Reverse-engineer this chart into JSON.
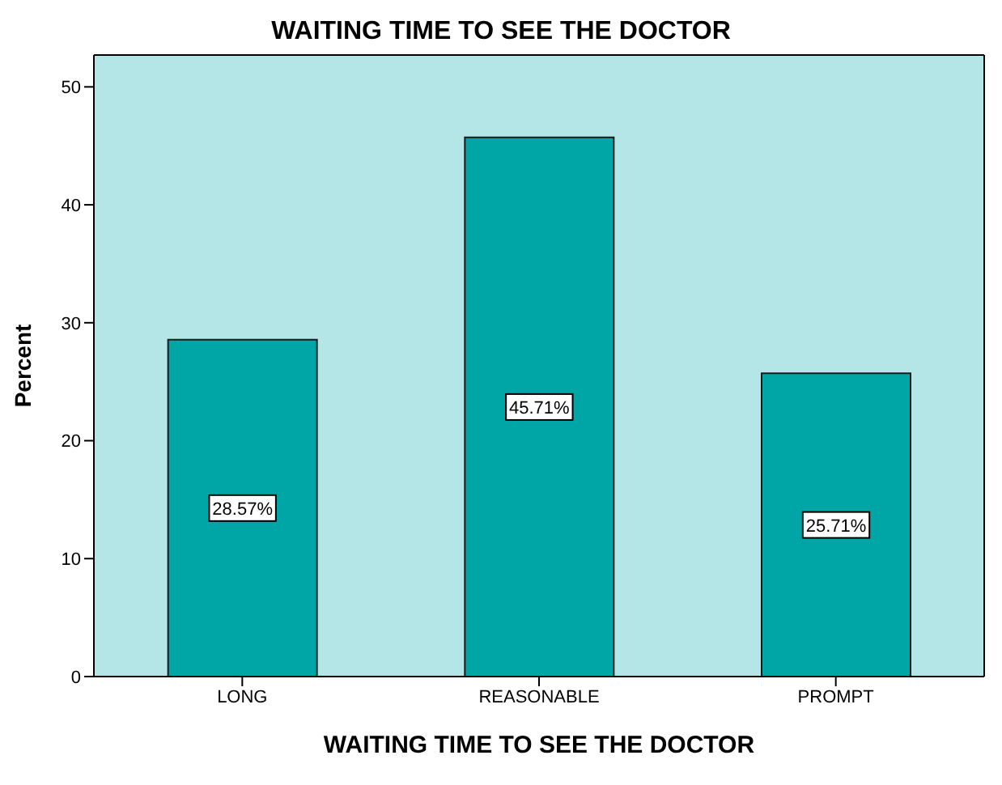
{
  "chart_data": {
    "type": "bar",
    "title": "WAITING TIME TO SEE THE DOCTOR",
    "xlabel": "WAITING TIME TO SEE THE DOCTOR",
    "ylabel": "Percent",
    "categories": [
      "LONG",
      "REASONABLE",
      "PROMPT"
    ],
    "values": [
      28.57,
      45.71,
      25.71
    ],
    "value_labels": [
      "28.57%",
      "45.71%",
      "25.71%"
    ],
    "color": "#00a6a6",
    "ylim": [
      0,
      52.7
    ],
    "yticks": [
      0,
      10,
      20,
      30,
      40,
      50
    ],
    "grid": false
  }
}
